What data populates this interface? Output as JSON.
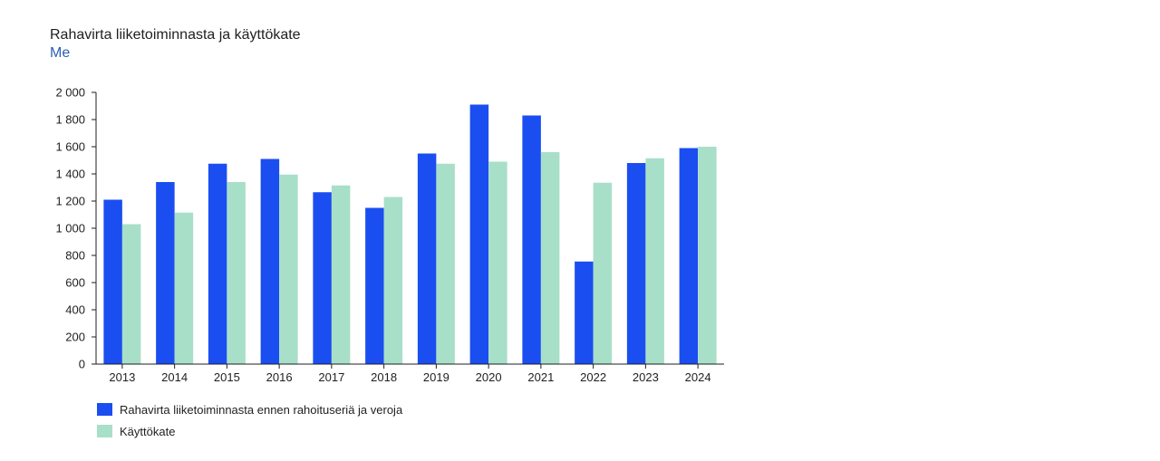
{
  "chart_data": {
    "type": "bar",
    "title": "Rahavirta liiketoiminnasta ja käyttökate",
    "subtitle": "Me",
    "categories": [
      "2013",
      "2014",
      "2015",
      "2016",
      "2017",
      "2018",
      "2019",
      "2020",
      "2021",
      "2022",
      "2023",
      "2024"
    ],
    "series": [
      {
        "name": "Rahavirta liiketoiminnasta ennen rahoituseriä ja veroja",
        "color": "#1a4ef0",
        "values": [
          1210,
          1340,
          1475,
          1510,
          1265,
          1150,
          1550,
          1910,
          1830,
          755,
          1480,
          1590
        ]
      },
      {
        "name": "Käyttökate",
        "color": "#a8dfc8",
        "values": [
          1030,
          1115,
          1340,
          1395,
          1315,
          1230,
          1475,
          1490,
          1560,
          1335,
          1515,
          1600
        ]
      }
    ],
    "ylim": [
      0,
      2000
    ],
    "yticks": [
      0,
      200,
      400,
      600,
      800,
      1000,
      1200,
      1400,
      1600,
      1800,
      2000
    ],
    "ytick_labels": [
      "0",
      "200",
      "400",
      "600",
      "800",
      "1 000",
      "1 200",
      "1 400",
      "1 600",
      "1 800",
      "2 000"
    ],
    "grid": false,
    "legend": "bottom-left"
  }
}
